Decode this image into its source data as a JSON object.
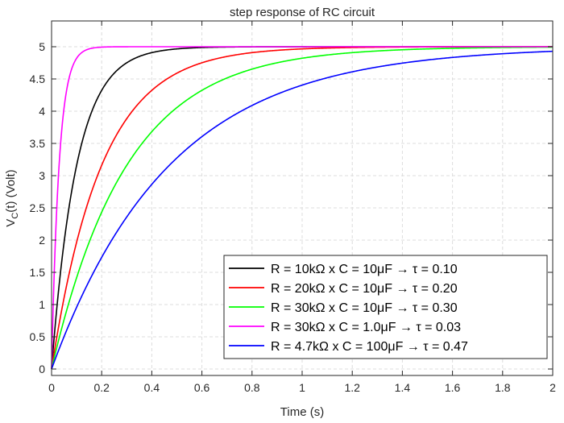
{
  "chart_data": {
    "type": "line",
    "title": "step response of RC circuit",
    "xlabel": "Time (s)",
    "ylabel": "V_C(t) (Volt)",
    "xlim": [
      0,
      2
    ],
    "ylim": [
      -0.1,
      5.4
    ],
    "xticks": [
      0,
      0.2,
      0.4,
      0.6,
      0.8,
      1,
      1.2,
      1.4,
      1.6,
      1.8,
      2
    ],
    "xtick_labels": [
      "0",
      "0.2",
      "0.4",
      "0.6",
      "0.8",
      "1",
      "1.2",
      "1.4",
      "1.6",
      "1.8",
      "2"
    ],
    "yticks": [
      0,
      0.5,
      1,
      1.5,
      2,
      2.5,
      3,
      3.5,
      4,
      4.5,
      5
    ],
    "ytick_labels": [
      "0",
      "0.5",
      "1",
      "1.5",
      "2",
      "2.5",
      "3",
      "3.5",
      "4",
      "4.5",
      "5"
    ],
    "grid": true,
    "legend_position": "bottom-right",
    "supply_voltage": 5,
    "series": [
      {
        "name": "R = 10kΩ  x  C = 10μF  →  τ = 0.10",
        "tau": 0.1,
        "color": "#000000"
      },
      {
        "name": "R = 20kΩ  x  C = 10μF  →  τ = 0.20",
        "tau": 0.2,
        "color": "#ff0000"
      },
      {
        "name": "R = 30kΩ  x  C = 10μF  →  τ = 0.30",
        "tau": 0.3,
        "color": "#00ff00"
      },
      {
        "name": "R = 30kΩ  x  C = 1.0μF  →  τ = 0.03",
        "tau": 0.03,
        "color": "#ff00ff"
      },
      {
        "name": "R = 4.7kΩ  x  C = 100μF  →  τ = 0.47",
        "tau": 0.47,
        "color": "#0000ff"
      }
    ]
  }
}
